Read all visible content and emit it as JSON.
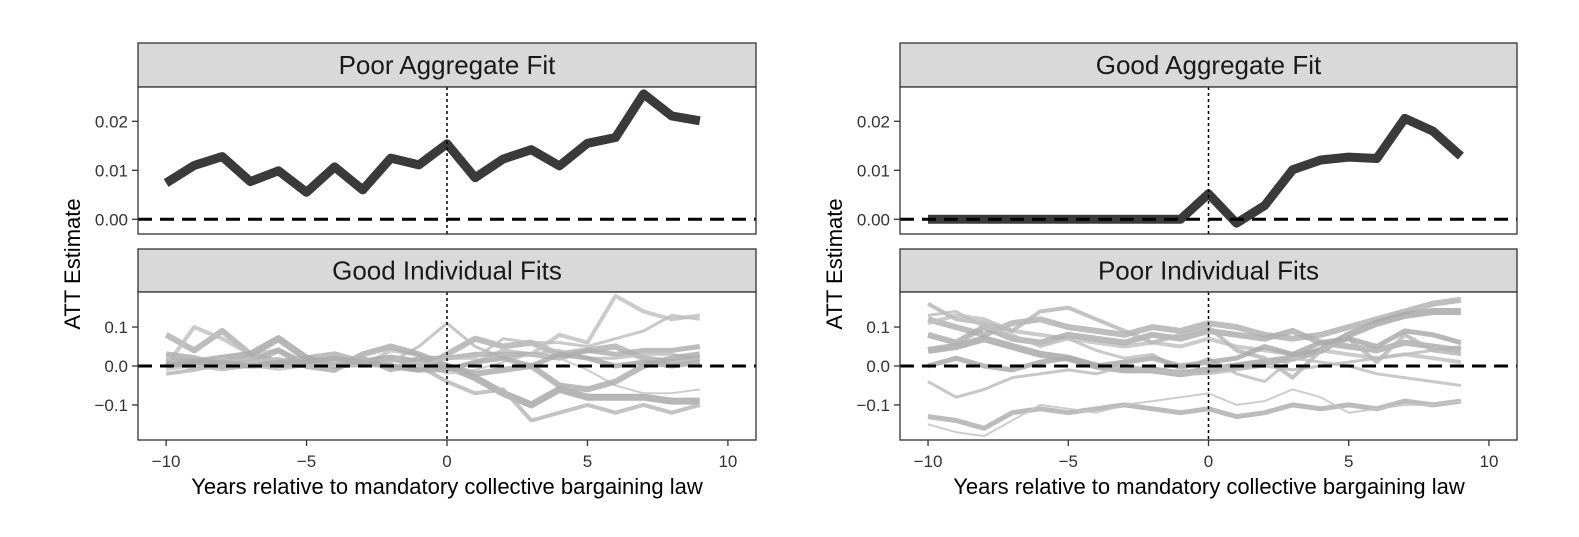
{
  "figure": {
    "ylabel": "ATT Estimate",
    "xlabel": "Years relative to mandatory collective bargaining law"
  },
  "chart_data": [
    {
      "type": "line",
      "strip": "Poor Aggregate Fit",
      "ylim": [
        -0.003,
        0.027
      ],
      "yticks": [
        0.0,
        0.01,
        0.02
      ],
      "ytick_labels": [
        "0.00",
        "0.01",
        "0.02"
      ],
      "xlim": [
        -11,
        11
      ],
      "x": [
        -10,
        -9,
        -8,
        -7,
        -6,
        -5,
        -4,
        -3,
        -2,
        -1,
        0,
        1,
        2,
        3,
        4,
        5,
        6,
        7,
        8,
        9
      ],
      "series": [
        {
          "values": [
            0.0074,
            0.011,
            0.0128,
            0.0077,
            0.0099,
            0.0055,
            0.0107,
            0.006,
            0.0125,
            0.0111,
            0.0154,
            0.0085,
            0.0123,
            0.0142,
            0.0109,
            0.0155,
            0.0167,
            0.0256,
            0.0211,
            0.0201
          ]
        }
      ],
      "hline": 0,
      "vline": 0
    },
    {
      "type": "line",
      "strip": "Good Individual Fits",
      "ylim": [
        -0.19,
        0.19
      ],
      "yticks": [
        -0.1,
        0.0,
        0.1
      ],
      "ytick_labels": [
        "−0.1",
        "0.0",
        "0.1"
      ],
      "xlim": [
        -11,
        11
      ],
      "xticks": [
        -10,
        -5,
        0,
        5,
        10
      ],
      "xtick_labels": [
        "−10",
        "−5",
        "0",
        "5",
        "10"
      ],
      "x": [
        -10,
        -9,
        -8,
        -7,
        -6,
        -5,
        -4,
        -3,
        -2,
        -1,
        0,
        1,
        2,
        3,
        4,
        5,
        6,
        7,
        8,
        9
      ],
      "series": [
        {
          "values": [
            0.08,
            0.04,
            0.09,
            0.03,
            0.01,
            0.02,
            0.03,
            0.01,
            0.0,
            -0.01,
            0.03,
            0.07,
            0.05,
            0.06,
            0.03,
            0.04,
            0.05,
            0.02,
            0.01,
            0.02
          ]
        },
        {
          "values": [
            0.0,
            0.1,
            0.07,
            0.03,
            0.04,
            0.01,
            0.02,
            0.0,
            0.04,
            0.03,
            -0.01,
            0.01,
            0.04,
            0.03,
            0.08,
            0.06,
            0.18,
            0.14,
            0.12,
            0.13
          ]
        },
        {
          "values": [
            0.01,
            0.01,
            0.02,
            0.03,
            0.07,
            0.02,
            0.0,
            0.01,
            0.02,
            0.01,
            0.0,
            -0.03,
            -0.07,
            -0.1,
            -0.06,
            -0.08,
            -0.08,
            -0.08,
            -0.09,
            -0.09
          ]
        },
        {
          "values": [
            0.0,
            0.0,
            -0.01,
            0.0,
            0.01,
            0.01,
            0.0,
            0.0,
            0.01,
            0.05,
            0.11,
            0.05,
            0.02,
            0.03,
            0.04,
            0.02,
            0.02,
            0.03,
            0.03,
            0.02
          ]
        },
        {
          "values": [
            0.0,
            0.01,
            0.0,
            0.0,
            0.0,
            0.01,
            0.0,
            0.02,
            -0.01,
            0.02,
            0.02,
            0.03,
            0.03,
            0.03,
            0.02,
            0.04,
            0.03,
            0.04,
            0.04,
            0.05
          ]
        },
        {
          "values": [
            -0.01,
            0.0,
            0.02,
            0.0,
            -0.01,
            0.0,
            0.02,
            0.01,
            0.0,
            0.01,
            -0.02,
            -0.01,
            0.01,
            0.03,
            0.02,
            -0.01,
            -0.05,
            -0.07,
            -0.07,
            -0.06
          ]
        },
        {
          "values": [
            0.03,
            0.02,
            0.0,
            0.01,
            0.04,
            0.0,
            -0.01,
            0.03,
            0.05,
            0.03,
            0.0,
            -0.02,
            -0.01,
            0.0,
            -0.05,
            -0.06,
            -0.04,
            0.0,
            0.02,
            0.03
          ]
        },
        {
          "values": [
            -0.02,
            -0.01,
            0.01,
            0.02,
            0.0,
            0.0,
            0.01,
            0.02,
            -0.01,
            0.0,
            -0.04,
            -0.07,
            -0.06,
            -0.14,
            -0.12,
            -0.1,
            -0.12,
            -0.1,
            -0.12,
            -0.1
          ]
        },
        {
          "values": [
            0.02,
            -0.01,
            0.0,
            0.01,
            0.02,
            0.0,
            0.0,
            0.0,
            0.0,
            0.0,
            0.02,
            0.02,
            0.07,
            0.06,
            0.06,
            0.05,
            0.07,
            0.09,
            0.13,
            0.12
          ]
        },
        {
          "values": [
            0.0,
            0.01,
            0.01,
            0.0,
            0.01,
            0.01,
            0.02,
            0.01,
            0.0,
            -0.01,
            -0.01,
            0.01,
            0.02,
            0.0,
            0.03,
            0.02,
            0.0,
            0.01,
            0.0,
            0.01
          ]
        }
      ],
      "hline": 0,
      "vline": 0
    },
    {
      "type": "line",
      "strip": "Good Aggregate Fit",
      "ylim": [
        -0.003,
        0.027
      ],
      "yticks": [
        0.0,
        0.01,
        0.02
      ],
      "ytick_labels": [
        "0.00",
        "0.01",
        "0.02"
      ],
      "xlim": [
        -11,
        11
      ],
      "x": [
        -10,
        -9,
        -8,
        -7,
        -6,
        -5,
        -4,
        -3,
        -2,
        -1,
        0,
        1,
        2,
        3,
        4,
        5,
        6,
        7,
        8,
        9
      ],
      "series": [
        {
          "values": [
            0.0,
            0.0,
            0.0,
            0.0,
            0.0,
            0.0,
            0.0,
            0.0,
            0.0,
            0.0,
            0.0052,
            -0.0008,
            0.0028,
            0.0101,
            0.0121,
            0.0127,
            0.0124,
            0.0206,
            0.018,
            0.0129
          ]
        }
      ],
      "hline": 0,
      "vline": 0
    },
    {
      "type": "line",
      "strip": "Poor Individual Fits",
      "ylim": [
        -0.19,
        0.19
      ],
      "yticks": [
        -0.1,
        0.0,
        0.1
      ],
      "ytick_labels": [
        "−0.1",
        "0.0",
        "0.1"
      ],
      "xlim": [
        -11,
        11
      ],
      "xticks": [
        -10,
        -5,
        0,
        5,
        10
      ],
      "xtick_labels": [
        "−10",
        "−5",
        "0",
        "5",
        "10"
      ],
      "x": [
        -10,
        -9,
        -8,
        -7,
        -6,
        -5,
        -4,
        -3,
        -2,
        -1,
        0,
        1,
        2,
        3,
        4,
        5,
        6,
        7,
        8,
        9
      ],
      "series": [
        {
          "values": [
            0.12,
            0.1,
            0.08,
            0.11,
            0.12,
            0.1,
            0.09,
            0.08,
            0.1,
            0.09,
            0.11,
            0.1,
            0.08,
            0.07,
            0.08,
            0.1,
            0.12,
            0.14,
            0.16,
            0.17
          ]
        },
        {
          "values": [
            0.11,
            0.13,
            0.12,
            0.09,
            0.08,
            0.07,
            0.06,
            0.05,
            0.06,
            0.05,
            0.07,
            0.05,
            0.04,
            0.03,
            0.04,
            0.03,
            0.02,
            0.03,
            0.02,
            0.01
          ]
        },
        {
          "values": [
            0.04,
            0.05,
            0.07,
            0.05,
            0.03,
            0.02,
            0.0,
            -0.01,
            -0.01,
            -0.02,
            -0.01,
            0.0,
            0.01,
            0.02,
            0.04,
            0.08,
            0.11,
            0.13,
            0.14,
            0.14
          ]
        },
        {
          "values": [
            -0.04,
            -0.08,
            -0.06,
            -0.03,
            -0.02,
            -0.01,
            -0.02,
            0.0,
            -0.01,
            -0.02,
            -0.02,
            -0.01,
            0.0,
            -0.01,
            0.0,
            0.01,
            0.02,
            0.03,
            0.04,
            0.05
          ]
        },
        {
          "values": [
            -0.13,
            -0.14,
            -0.16,
            -0.12,
            -0.11,
            -0.12,
            -0.11,
            -0.1,
            -0.11,
            -0.12,
            -0.11,
            -0.13,
            -0.12,
            -0.1,
            -0.11,
            -0.1,
            -0.11,
            -0.09,
            -0.1,
            -0.09
          ]
        },
        {
          "values": [
            -0.15,
            -0.17,
            -0.18,
            -0.14,
            -0.1,
            -0.11,
            -0.12,
            -0.1,
            -0.09,
            -0.08,
            -0.07,
            -0.1,
            -0.09,
            -0.06,
            -0.08,
            -0.12,
            -0.11,
            -0.1,
            -0.1,
            -0.09
          ]
        },
        {
          "values": [
            0.08,
            0.06,
            0.1,
            0.07,
            0.06,
            0.08,
            0.07,
            0.06,
            0.08,
            0.07,
            0.09,
            0.08,
            0.07,
            0.09,
            0.06,
            0.05,
            0.04,
            0.06,
            0.05,
            0.04
          ]
        },
        {
          "values": [
            0.16,
            0.12,
            0.11,
            0.09,
            0.14,
            0.15,
            0.12,
            0.09,
            0.06,
            0.08,
            0.1,
            0.04,
            0.02,
            -0.03,
            0.04,
            0.07,
            0.01,
            0.08,
            0.04,
            0.03
          ]
        },
        {
          "values": [
            0.13,
            0.14,
            0.1,
            0.08,
            0.05,
            0.07,
            0.04,
            0.02,
            0.03,
            -0.01,
            0.02,
            -0.02,
            -0.04,
            0.02,
            0.01,
            0.0,
            -0.02,
            -0.03,
            -0.04,
            -0.05
          ]
        },
        {
          "values": [
            0.0,
            0.02,
            0.0,
            -0.01,
            0.01,
            0.02,
            0.0,
            0.01,
            0.02,
            0.0,
            0.01,
            0.02,
            0.05,
            0.03,
            0.06,
            0.07,
            0.05,
            0.09,
            0.08,
            0.06
          ]
        }
      ],
      "hline": 0,
      "vline": 0
    }
  ]
}
